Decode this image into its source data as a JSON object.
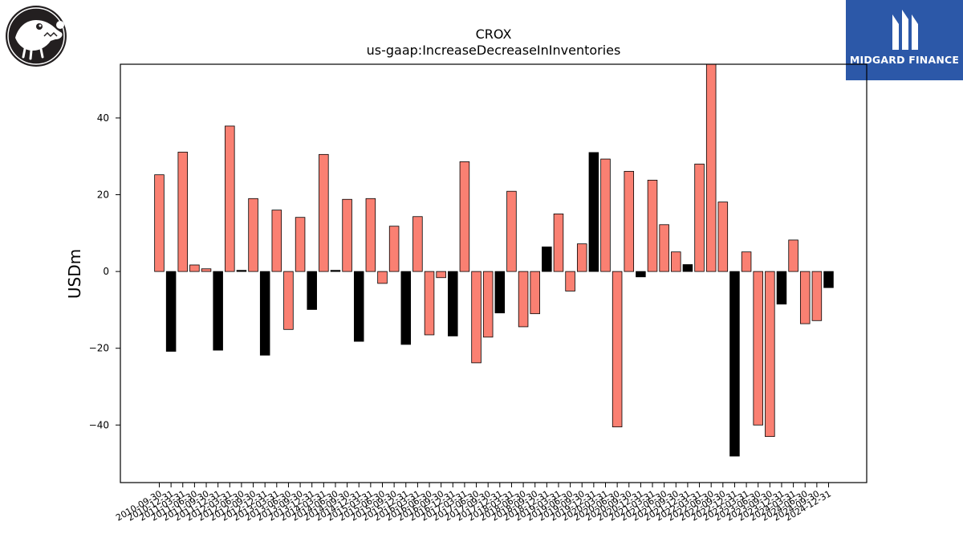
{
  "logos": {
    "left": "crocodile-logo",
    "right": {
      "name": "MIDGARD FINANCE",
      "color": "#2c58a8"
    }
  },
  "chart_data": {
    "type": "bar",
    "title": "CROX",
    "subtitle": "us-gaap:IncreaseDecreaseInInventories",
    "ylabel": "USDm",
    "xlabel": "",
    "ylim": [
      -55,
      54
    ],
    "yticks": [
      -40,
      -20,
      0,
      20,
      40
    ],
    "grid": false,
    "colors": {
      "salmon": "#fa8072",
      "black": "#000000"
    },
    "categories": [
      "2010-09-30",
      "2010-12-31",
      "2011-03-31",
      "2011-06-30",
      "2011-09-30",
      "2011-12-31",
      "2012-03-31",
      "2012-06-30",
      "2012-09-30",
      "2012-12-31",
      "2013-03-31",
      "2013-06-30",
      "2013-09-30",
      "2013-12-31",
      "2014-03-31",
      "2014-06-30",
      "2014-09-30",
      "2014-12-31",
      "2015-03-31",
      "2015-06-30",
      "2015-09-30",
      "2015-12-31",
      "2016-03-31",
      "2016-06-30",
      "2016-09-30",
      "2016-12-31",
      "2017-03-31",
      "2017-06-30",
      "2017-09-30",
      "2017-12-31",
      "2018-03-31",
      "2018-06-30",
      "2018-09-30",
      "2018-12-31",
      "2019-03-31",
      "2019-06-30",
      "2019-09-30",
      "2019-12-31",
      "2020-03-31",
      "2020-06-30",
      "2020-09-30",
      "2020-12-31",
      "2021-03-31",
      "2021-06-30",
      "2021-09-30",
      "2021-12-31",
      "2022-03-31",
      "2022-06-30",
      "2022-09-30",
      "2022-12-31",
      "2023-03-31",
      "2023-06-30",
      "2023-09-30",
      "2023-12-31",
      "2024-03-31",
      "2024-06-30",
      "2024-09-30",
      "2024-12-31"
    ],
    "values": [
      25.2,
      -20.8,
      31.1,
      1.7,
      0.7,
      -20.5,
      37.9,
      0.3,
      19.0,
      -21.8,
      16.0,
      -15.1,
      14.1,
      -9.9,
      30.5,
      0.3,
      18.8,
      -18.2,
      19.0,
      -3.1,
      11.8,
      -19.0,
      14.3,
      -16.5,
      -1.6,
      -16.8,
      28.6,
      -23.8,
      -17.1,
      -10.8,
      20.9,
      -14.4,
      -11.0,
      6.4,
      15.0,
      -5.1,
      7.2,
      31.0,
      29.3,
      -40.5,
      26.1,
      -1.4,
      23.8,
      12.2,
      5.1,
      1.8,
      28.0,
      54.0,
      18.1,
      -48.1,
      5.1,
      -40.0,
      -43.0,
      -8.5,
      8.2,
      -13.6,
      -12.8,
      -4.2
    ],
    "bar_colors": [
      "salmon",
      "black",
      "salmon",
      "salmon",
      "salmon",
      "black",
      "salmon",
      "black",
      "salmon",
      "black",
      "salmon",
      "salmon",
      "salmon",
      "black",
      "salmon",
      "black",
      "salmon",
      "black",
      "salmon",
      "salmon",
      "salmon",
      "black",
      "salmon",
      "salmon",
      "salmon",
      "black",
      "salmon",
      "salmon",
      "salmon",
      "black",
      "salmon",
      "salmon",
      "salmon",
      "black",
      "salmon",
      "salmon",
      "salmon",
      "black",
      "salmon",
      "salmon",
      "salmon",
      "black",
      "salmon",
      "salmon",
      "salmon",
      "black",
      "salmon",
      "salmon",
      "salmon",
      "black",
      "salmon",
      "salmon",
      "salmon",
      "black",
      "salmon",
      "salmon",
      "salmon",
      "black"
    ]
  }
}
